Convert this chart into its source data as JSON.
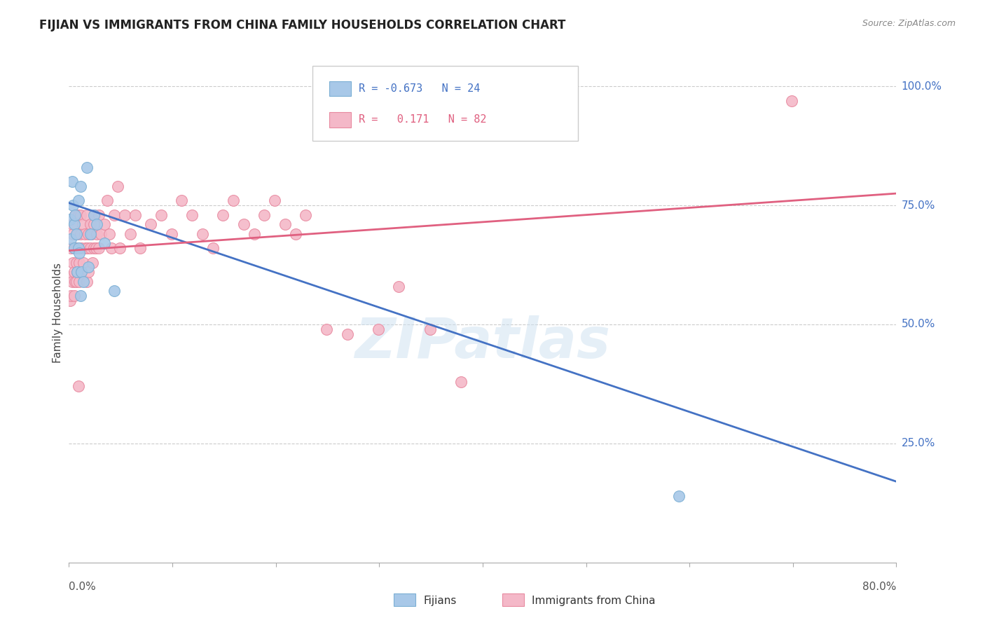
{
  "title": "FIJIAN VS IMMIGRANTS FROM CHINA FAMILY HOUSEHOLDS CORRELATION CHART",
  "source": "Source: ZipAtlas.com",
  "ylabel": "Family Households",
  "right_yticks": [
    "25.0%",
    "50.0%",
    "75.0%",
    "100.0%"
  ],
  "right_ytick_vals": [
    0.25,
    0.5,
    0.75,
    1.0
  ],
  "xlim": [
    0.0,
    0.8
  ],
  "ylim": [
    0.0,
    1.05
  ],
  "fijian_color": "#a8c8e8",
  "fijian_edge_color": "#7bafd4",
  "china_color": "#f4b8c8",
  "china_edge_color": "#e88aa0",
  "fijian_line_color": "#4472c4",
  "china_line_color": "#e06080",
  "watermark": "ZIPatlas",
  "fijian_scatter": [
    [
      0.001,
      0.72
    ],
    [
      0.002,
      0.68
    ],
    [
      0.003,
      0.8
    ],
    [
      0.004,
      0.75
    ],
    [
      0.005,
      0.66
    ],
    [
      0.005,
      0.71
    ],
    [
      0.006,
      0.73
    ],
    [
      0.007,
      0.69
    ],
    [
      0.008,
      0.61
    ],
    [
      0.009,
      0.66
    ],
    [
      0.009,
      0.76
    ],
    [
      0.01,
      0.65
    ],
    [
      0.011,
      0.79
    ],
    [
      0.011,
      0.56
    ],
    [
      0.012,
      0.61
    ],
    [
      0.014,
      0.59
    ],
    [
      0.017,
      0.83
    ],
    [
      0.019,
      0.62
    ],
    [
      0.021,
      0.69
    ],
    [
      0.024,
      0.73
    ],
    [
      0.027,
      0.71
    ],
    [
      0.034,
      0.67
    ],
    [
      0.044,
      0.57
    ],
    [
      0.59,
      0.14
    ]
  ],
  "china_scatter": [
    [
      0.001,
      0.6
    ],
    [
      0.001,
      0.55
    ],
    [
      0.002,
      0.66
    ],
    [
      0.002,
      0.56
    ],
    [
      0.003,
      0.59
    ],
    [
      0.003,
      0.71
    ],
    [
      0.004,
      0.63
    ],
    [
      0.004,
      0.69
    ],
    [
      0.005,
      0.56
    ],
    [
      0.005,
      0.61
    ],
    [
      0.005,
      0.66
    ],
    [
      0.006,
      0.73
    ],
    [
      0.006,
      0.59
    ],
    [
      0.007,
      0.63
    ],
    [
      0.007,
      0.66
    ],
    [
      0.007,
      0.59
    ],
    [
      0.008,
      0.69
    ],
    [
      0.008,
      0.61
    ],
    [
      0.009,
      0.73
    ],
    [
      0.009,
      0.66
    ],
    [
      0.01,
      0.63
    ],
    [
      0.01,
      0.59
    ],
    [
      0.011,
      0.69
    ],
    [
      0.011,
      0.73
    ],
    [
      0.012,
      0.66
    ],
    [
      0.012,
      0.61
    ],
    [
      0.013,
      0.71
    ],
    [
      0.014,
      0.63
    ],
    [
      0.015,
      0.69
    ],
    [
      0.016,
      0.66
    ],
    [
      0.017,
      0.73
    ],
    [
      0.017,
      0.59
    ],
    [
      0.018,
      0.66
    ],
    [
      0.019,
      0.69
    ],
    [
      0.019,
      0.61
    ],
    [
      0.021,
      0.71
    ],
    [
      0.021,
      0.66
    ],
    [
      0.022,
      0.69
    ],
    [
      0.023,
      0.63
    ],
    [
      0.024,
      0.71
    ],
    [
      0.024,
      0.66
    ],
    [
      0.025,
      0.73
    ],
    [
      0.026,
      0.66
    ],
    [
      0.027,
      0.69
    ],
    [
      0.029,
      0.73
    ],
    [
      0.029,
      0.66
    ],
    [
      0.031,
      0.69
    ],
    [
      0.034,
      0.71
    ],
    [
      0.037,
      0.76
    ],
    [
      0.039,
      0.69
    ],
    [
      0.041,
      0.66
    ],
    [
      0.044,
      0.73
    ],
    [
      0.047,
      0.79
    ],
    [
      0.049,
      0.66
    ],
    [
      0.054,
      0.73
    ],
    [
      0.059,
      0.69
    ],
    [
      0.064,
      0.73
    ],
    [
      0.069,
      0.66
    ],
    [
      0.079,
      0.71
    ],
    [
      0.089,
      0.73
    ],
    [
      0.099,
      0.69
    ],
    [
      0.109,
      0.76
    ],
    [
      0.119,
      0.73
    ],
    [
      0.129,
      0.69
    ],
    [
      0.139,
      0.66
    ],
    [
      0.149,
      0.73
    ],
    [
      0.159,
      0.76
    ],
    [
      0.169,
      0.71
    ],
    [
      0.179,
      0.69
    ],
    [
      0.189,
      0.73
    ],
    [
      0.199,
      0.76
    ],
    [
      0.209,
      0.71
    ],
    [
      0.219,
      0.69
    ],
    [
      0.229,
      0.73
    ],
    [
      0.249,
      0.49
    ],
    [
      0.269,
      0.48
    ],
    [
      0.299,
      0.49
    ],
    [
      0.349,
      0.49
    ],
    [
      0.319,
      0.58
    ],
    [
      0.379,
      0.38
    ],
    [
      0.009,
      0.37
    ],
    [
      0.699,
      0.97
    ]
  ],
  "fijian_line": {
    "x0": 0.0,
    "y0": 0.755,
    "x1": 0.8,
    "y1": 0.17
  },
  "china_line": {
    "x0": 0.0,
    "y0": 0.655,
    "x1": 0.8,
    "y1": 0.775
  }
}
